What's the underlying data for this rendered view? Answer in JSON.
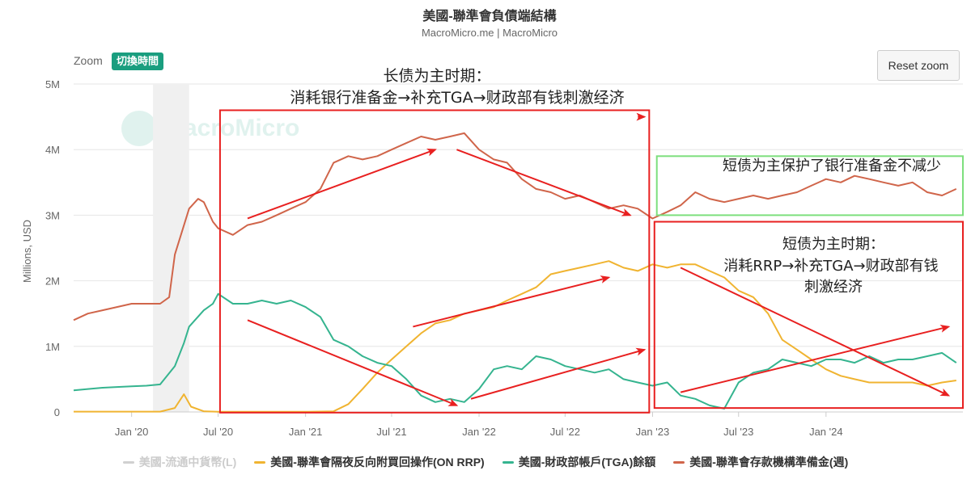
{
  "title": "美國-聯準會負債端結構",
  "subtitle": "MacroMicro.me | MacroMicro",
  "toolbar": {
    "zoom_label": "Zoom",
    "switch_label": "切換時間",
    "reset_label": "Reset zoom"
  },
  "watermark": {
    "text": "MacroMicro"
  },
  "annotations": {
    "long_title": "长债为主时期：",
    "long_body": "消耗银行准备金→补充TGA→财政部有钱刺激经济",
    "short_protect": "短债为主保护了银行准备金不减少",
    "short_title": "短债为主时期：",
    "short_body1": "消耗RRP→补充TGA→财政部有钱",
    "short_body2": "刺激经济"
  },
  "colors": {
    "currency": "#d0d0d0",
    "rrp": "#f0b431",
    "tga": "#35b48f",
    "reserves": "#d0654a",
    "annotation_red": "#e82020",
    "annotation_green": "#7ddf7d"
  },
  "chart_data": {
    "type": "line",
    "ylabel": "Millions, USD",
    "ylim": [
      0,
      5000000
    ],
    "yticks": [
      {
        "value": 0,
        "label": "0"
      },
      {
        "value": 1000000,
        "label": "1M"
      },
      {
        "value": 2000000,
        "label": "2M"
      },
      {
        "value": 3000000,
        "label": "3M"
      },
      {
        "value": 4000000,
        "label": "4M"
      },
      {
        "value": 5000000,
        "label": "5M"
      }
    ],
    "xlim": [
      "2019-09-01",
      "2024-10-15"
    ],
    "xticks": [
      {
        "date": "2020-01-01",
        "label": "Jan '20"
      },
      {
        "date": "2020-07-01",
        "label": "Jul '20"
      },
      {
        "date": "2021-01-01",
        "label": "Jan '21"
      },
      {
        "date": "2021-07-01",
        "label": "Jul '21"
      },
      {
        "date": "2022-01-01",
        "label": "Jan '22"
      },
      {
        "date": "2022-07-01",
        "label": "Jul '22"
      },
      {
        "date": "2023-01-01",
        "label": "Jan '23"
      },
      {
        "date": "2023-07-01",
        "label": "Jul '23"
      },
      {
        "date": "2024-01-01",
        "label": "Jan '24"
      }
    ],
    "recession_band": [
      "2020-02-15",
      "2020-05-01"
    ],
    "series": [
      {
        "key": "currency",
        "name": "美國-流通中貨幣(L)",
        "visible": false,
        "points": []
      },
      {
        "key": "rrp",
        "name": "美國-聯準會隔夜反向附買回操作(ON RRP)",
        "visible": true,
        "points": [
          [
            "2019-09-01",
            5000
          ],
          [
            "2020-03-01",
            5000
          ],
          [
            "2020-04-01",
            60000
          ],
          [
            "2020-04-20",
            270000
          ],
          [
            "2020-05-05",
            80000
          ],
          [
            "2020-06-01",
            10000
          ],
          [
            "2020-07-01",
            2000
          ],
          [
            "2021-01-01",
            2000
          ],
          [
            "2021-03-01",
            10000
          ],
          [
            "2021-04-01",
            120000
          ],
          [
            "2021-05-01",
            350000
          ],
          [
            "2021-06-01",
            600000
          ],
          [
            "2021-07-01",
            800000
          ],
          [
            "2021-08-01",
            1000000
          ],
          [
            "2021-09-01",
            1200000
          ],
          [
            "2021-10-01",
            1350000
          ],
          [
            "2021-11-01",
            1400000
          ],
          [
            "2021-12-01",
            1500000
          ],
          [
            "2022-01-01",
            1550000
          ],
          [
            "2022-02-01",
            1600000
          ],
          [
            "2022-03-01",
            1700000
          ],
          [
            "2022-04-01",
            1800000
          ],
          [
            "2022-05-01",
            1900000
          ],
          [
            "2022-06-01",
            2100000
          ],
          [
            "2022-07-01",
            2150000
          ],
          [
            "2022-08-01",
            2200000
          ],
          [
            "2022-09-01",
            2250000
          ],
          [
            "2022-10-01",
            2300000
          ],
          [
            "2022-11-01",
            2200000
          ],
          [
            "2022-12-01",
            2150000
          ],
          [
            "2023-01-01",
            2250000
          ],
          [
            "2023-02-01",
            2200000
          ],
          [
            "2023-03-01",
            2250000
          ],
          [
            "2023-04-01",
            2250000
          ],
          [
            "2023-05-01",
            2150000
          ],
          [
            "2023-06-01",
            2050000
          ],
          [
            "2023-07-01",
            1850000
          ],
          [
            "2023-08-01",
            1750000
          ],
          [
            "2023-09-01",
            1500000
          ],
          [
            "2023-10-01",
            1100000
          ],
          [
            "2023-11-01",
            950000
          ],
          [
            "2023-12-01",
            800000
          ],
          [
            "2024-01-01",
            650000
          ],
          [
            "2024-02-01",
            550000
          ],
          [
            "2024-03-01",
            500000
          ],
          [
            "2024-04-01",
            450000
          ],
          [
            "2024-05-01",
            450000
          ],
          [
            "2024-06-01",
            450000
          ],
          [
            "2024-07-01",
            450000
          ],
          [
            "2024-08-01",
            400000
          ],
          [
            "2024-09-01",
            450000
          ],
          [
            "2024-10-01",
            480000
          ]
        ]
      },
      {
        "key": "tga",
        "name": "美國-財政部帳戶(TGA)餘額",
        "visible": true,
        "points": [
          [
            "2019-09-01",
            330000
          ],
          [
            "2019-10-01",
            350000
          ],
          [
            "2019-11-01",
            370000
          ],
          [
            "2019-12-01",
            380000
          ],
          [
            "2020-01-01",
            390000
          ],
          [
            "2020-02-01",
            400000
          ],
          [
            "2020-03-01",
            420000
          ],
          [
            "2020-04-01",
            700000
          ],
          [
            "2020-04-20",
            1050000
          ],
          [
            "2020-05-01",
            1300000
          ],
          [
            "2020-06-01",
            1550000
          ],
          [
            "2020-06-20",
            1650000
          ],
          [
            "2020-07-01",
            1800000
          ],
          [
            "2020-08-01",
            1650000
          ],
          [
            "2020-09-01",
            1650000
          ],
          [
            "2020-10-01",
            1700000
          ],
          [
            "2020-11-01",
            1650000
          ],
          [
            "2020-12-01",
            1700000
          ],
          [
            "2021-01-01",
            1600000
          ],
          [
            "2021-02-01",
            1450000
          ],
          [
            "2021-03-01",
            1100000
          ],
          [
            "2021-04-01",
            1000000
          ],
          [
            "2021-05-01",
            850000
          ],
          [
            "2021-06-01",
            750000
          ],
          [
            "2021-07-01",
            700000
          ],
          [
            "2021-08-01",
            500000
          ],
          [
            "2021-09-01",
            250000
          ],
          [
            "2021-10-01",
            150000
          ],
          [
            "2021-11-01",
            200000
          ],
          [
            "2021-12-01",
            150000
          ],
          [
            "2022-01-01",
            350000
          ],
          [
            "2022-02-01",
            650000
          ],
          [
            "2022-03-01",
            700000
          ],
          [
            "2022-04-01",
            650000
          ],
          [
            "2022-05-01",
            850000
          ],
          [
            "2022-06-01",
            800000
          ],
          [
            "2022-07-01",
            700000
          ],
          [
            "2022-08-01",
            650000
          ],
          [
            "2022-09-01",
            600000
          ],
          [
            "2022-10-01",
            650000
          ],
          [
            "2022-11-01",
            500000
          ],
          [
            "2022-12-01",
            450000
          ],
          [
            "2023-01-01",
            400000
          ],
          [
            "2023-02-01",
            450000
          ],
          [
            "2023-03-01",
            250000
          ],
          [
            "2023-04-01",
            200000
          ],
          [
            "2023-05-01",
            100000
          ],
          [
            "2023-06-01",
            50000
          ],
          [
            "2023-07-01",
            450000
          ],
          [
            "2023-08-01",
            600000
          ],
          [
            "2023-09-01",
            650000
          ],
          [
            "2023-10-01",
            800000
          ],
          [
            "2023-11-01",
            750000
          ],
          [
            "2023-12-01",
            700000
          ],
          [
            "2024-01-01",
            800000
          ],
          [
            "2024-02-01",
            800000
          ],
          [
            "2024-03-01",
            750000
          ],
          [
            "2024-04-01",
            850000
          ],
          [
            "2024-05-01",
            750000
          ],
          [
            "2024-06-01",
            800000
          ],
          [
            "2024-07-01",
            800000
          ],
          [
            "2024-08-01",
            850000
          ],
          [
            "2024-09-01",
            900000
          ],
          [
            "2024-10-01",
            750000
          ]
        ]
      },
      {
        "key": "reserves",
        "name": "美國-聯準會存款機構準備金(週)",
        "visible": true,
        "points": [
          [
            "2019-09-01",
            1400000
          ],
          [
            "2019-10-01",
            1500000
          ],
          [
            "2019-11-01",
            1550000
          ],
          [
            "2019-12-01",
            1600000
          ],
          [
            "2020-01-01",
            1650000
          ],
          [
            "2020-02-01",
            1650000
          ],
          [
            "2020-03-01",
            1650000
          ],
          [
            "2020-03-20",
            1750000
          ],
          [
            "2020-04-01",
            2400000
          ],
          [
            "2020-05-01",
            3100000
          ],
          [
            "2020-05-20",
            3250000
          ],
          [
            "2020-06-01",
            3200000
          ],
          [
            "2020-06-20",
            2900000
          ],
          [
            "2020-07-01",
            2800000
          ],
          [
            "2020-08-01",
            2700000
          ],
          [
            "2020-09-01",
            2850000
          ],
          [
            "2020-10-01",
            2900000
          ],
          [
            "2020-11-01",
            3000000
          ],
          [
            "2020-12-01",
            3100000
          ],
          [
            "2021-01-01",
            3200000
          ],
          [
            "2021-02-01",
            3400000
          ],
          [
            "2021-03-01",
            3800000
          ],
          [
            "2021-04-01",
            3900000
          ],
          [
            "2021-05-01",
            3850000
          ],
          [
            "2021-06-01",
            3900000
          ],
          [
            "2021-07-01",
            4000000
          ],
          [
            "2021-08-01",
            4100000
          ],
          [
            "2021-09-01",
            4200000
          ],
          [
            "2021-10-01",
            4150000
          ],
          [
            "2021-11-01",
            4200000
          ],
          [
            "2021-12-01",
            4250000
          ],
          [
            "2022-01-01",
            4000000
          ],
          [
            "2022-02-01",
            3850000
          ],
          [
            "2022-03-01",
            3800000
          ],
          [
            "2022-04-01",
            3550000
          ],
          [
            "2022-05-01",
            3400000
          ],
          [
            "2022-06-01",
            3350000
          ],
          [
            "2022-07-01",
            3250000
          ],
          [
            "2022-08-01",
            3300000
          ],
          [
            "2022-09-01",
            3200000
          ],
          [
            "2022-10-01",
            3100000
          ],
          [
            "2022-11-01",
            3150000
          ],
          [
            "2022-12-01",
            3100000
          ],
          [
            "2023-01-01",
            2950000
          ],
          [
            "2023-02-01",
            3050000
          ],
          [
            "2023-03-01",
            3150000
          ],
          [
            "2023-04-01",
            3350000
          ],
          [
            "2023-05-01",
            3250000
          ],
          [
            "2023-06-01",
            3200000
          ],
          [
            "2023-07-01",
            3250000
          ],
          [
            "2023-08-01",
            3300000
          ],
          [
            "2023-09-01",
            3250000
          ],
          [
            "2023-10-01",
            3300000
          ],
          [
            "2023-11-01",
            3350000
          ],
          [
            "2023-12-01",
            3450000
          ],
          [
            "2024-01-01",
            3550000
          ],
          [
            "2024-02-01",
            3500000
          ],
          [
            "2024-03-01",
            3600000
          ],
          [
            "2024-04-01",
            3550000
          ],
          [
            "2024-05-01",
            3500000
          ],
          [
            "2024-06-01",
            3450000
          ],
          [
            "2024-07-01",
            3500000
          ],
          [
            "2024-08-01",
            3350000
          ],
          [
            "2024-09-01",
            3300000
          ],
          [
            "2024-10-01",
            3400000
          ]
        ]
      }
    ],
    "arrows": [
      {
        "from": [
          "2020-09-01",
          2950000
        ],
        "to": [
          "2021-10-01",
          4000000
        ]
      },
      {
        "from": [
          "2021-11-15",
          4000000
        ],
        "to": [
          "2022-11-15",
          3000000
        ]
      },
      {
        "from": [
          "2020-09-01",
          1400000
        ],
        "to": [
          "2021-11-15",
          100000
        ]
      },
      {
        "from": [
          "2021-12-15",
          200000
        ],
        "to": [
          "2022-12-15",
          950000
        ]
      },
      {
        "from": [
          "2021-08-15",
          1300000
        ],
        "to": [
          "2022-10-01",
          2050000
        ]
      },
      {
        "from": [
          "2023-03-01",
          2200000
        ],
        "to": [
          "2024-09-15",
          250000
        ]
      },
      {
        "from": [
          "2023-03-01",
          300000
        ],
        "to": [
          "2024-09-15",
          1300000
        ]
      },
      {
        "from": [
          "2022-12-01",
          4500000
        ],
        "to": [
          "2022-12-15",
          4500000
        ]
      }
    ],
    "boxes": [
      {
        "color": "red",
        "from": [
          "2020-07-05",
          4600000
        ],
        "to": [
          "2022-12-25",
          -10000
        ]
      },
      {
        "color": "green",
        "from": [
          "2023-01-10",
          3900000
        ],
        "to": [
          "2024-10-15",
          3000000
        ]
      },
      {
        "color": "red",
        "from": [
          "2023-01-05",
          2900000
        ],
        "to": [
          "2024-10-15",
          60000
        ]
      }
    ]
  },
  "legend": [
    {
      "key": "currency",
      "label": "美國-流通中貨幣(L)",
      "color": "#d0d0d0"
    },
    {
      "key": "rrp",
      "label": "美國-聯準會隔夜反向附買回操作(ON RRP)",
      "color": "#f0b431"
    },
    {
      "key": "tga",
      "label": "美國-財政部帳戶(TGA)餘額",
      "color": "#35b48f"
    },
    {
      "key": "reserves",
      "label": "美國-聯準會存款機構準備金(週)",
      "color": "#d0654a"
    }
  ]
}
